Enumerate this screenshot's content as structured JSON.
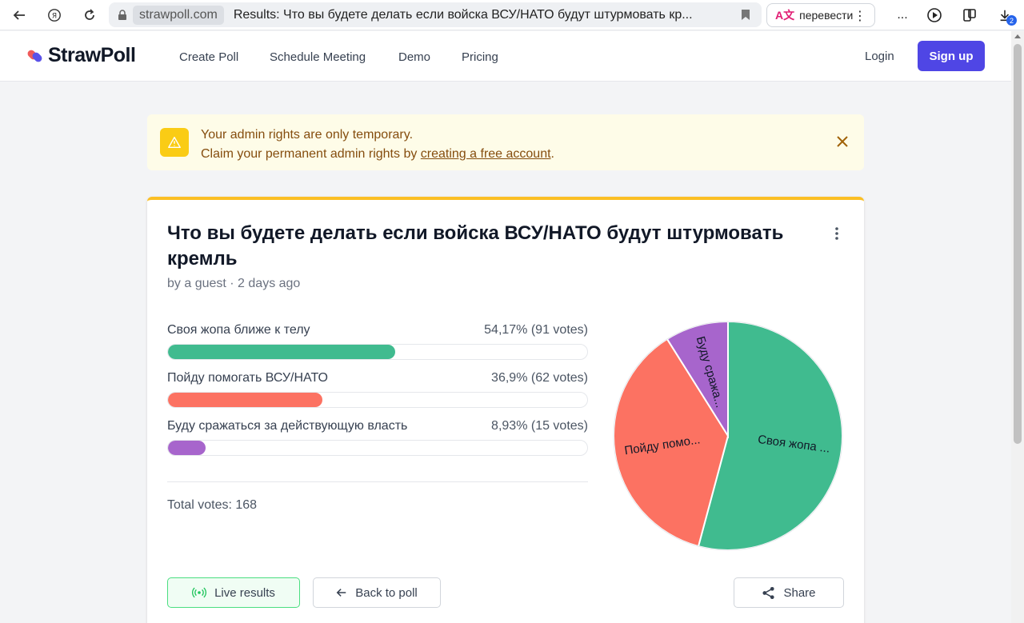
{
  "browser": {
    "domain": "strawpoll.com",
    "tab_title": "Results: Что вы будете делать если войска ВСУ/НАТО будут штурмовать кр...",
    "translate_label": "перевести",
    "more_label": "...",
    "download_badge": "2"
  },
  "header": {
    "logo_text": "StrawPoll",
    "nav": [
      "Create Poll",
      "Schedule Meeting",
      "Demo",
      "Pricing"
    ],
    "login": "Login",
    "signup": "Sign up"
  },
  "alert": {
    "line1": "Your admin rights are only temporary.",
    "line2_prefix": "Claim your permanent admin rights by ",
    "link": "creating a free account",
    "line2_suffix": "."
  },
  "poll": {
    "title": "Что вы будете делать если войска ВСУ/НАТО будут штурмовать кремль",
    "byline": "by a guest · 2 days ago",
    "options": [
      {
        "label": "Своя жопа ближе к телу",
        "result": "54,17% (91 votes)",
        "percent": 54.17,
        "color": "#40bb8f"
      },
      {
        "label": "Пойду помогать ВСУ/НАТО",
        "result": "36,9% (62 votes)",
        "percent": 36.9,
        "color": "#fc7262"
      },
      {
        "label": "Буду сражаться за действующую власть",
        "result": "8,93% (15 votes)",
        "percent": 8.93,
        "color": "#a765cc"
      }
    ],
    "total": "Total votes: 168"
  },
  "chart_data": {
    "type": "pie",
    "categories": [
      "Своя жопа ...",
      "Пойду помо...",
      "Буду сража..."
    ],
    "values": [
      91,
      62,
      15
    ],
    "colors": [
      "#40bb8f",
      "#fc7262",
      "#a765cc"
    ]
  },
  "buttons": {
    "live": "Live results",
    "back": "Back to poll",
    "share": "Share"
  }
}
